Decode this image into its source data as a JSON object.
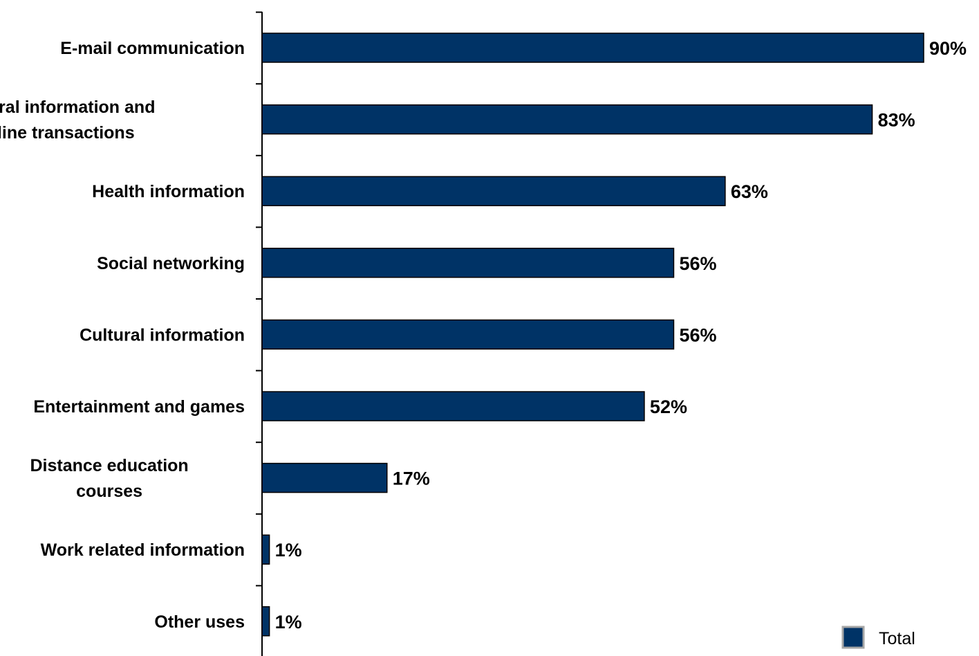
{
  "chart_data": {
    "type": "bar",
    "orientation": "horizontal",
    "categories": [
      [
        "E-mail communication"
      ],
      [
        "General information and",
        "online transactions"
      ],
      [
        "Health information"
      ],
      [
        "Social networking"
      ],
      [
        "Cultural information"
      ],
      [
        "Entertainment and games"
      ],
      [
        "Distance education",
        "courses"
      ],
      [
        "Work related information"
      ],
      [
        "Other uses"
      ]
    ],
    "series": [
      {
        "name": "Total",
        "color": "#003366",
        "values": [
          90,
          83,
          63,
          56,
          56,
          52,
          17,
          1,
          1
        ],
        "labels": [
          "90%",
          "83%",
          "63%",
          "56%",
          "56%",
          "52%",
          "17%",
          "1%",
          "1%"
        ]
      }
    ],
    "xlim": [
      0,
      100
    ],
    "grid": false,
    "legend": {
      "position": "bottom-right"
    }
  }
}
